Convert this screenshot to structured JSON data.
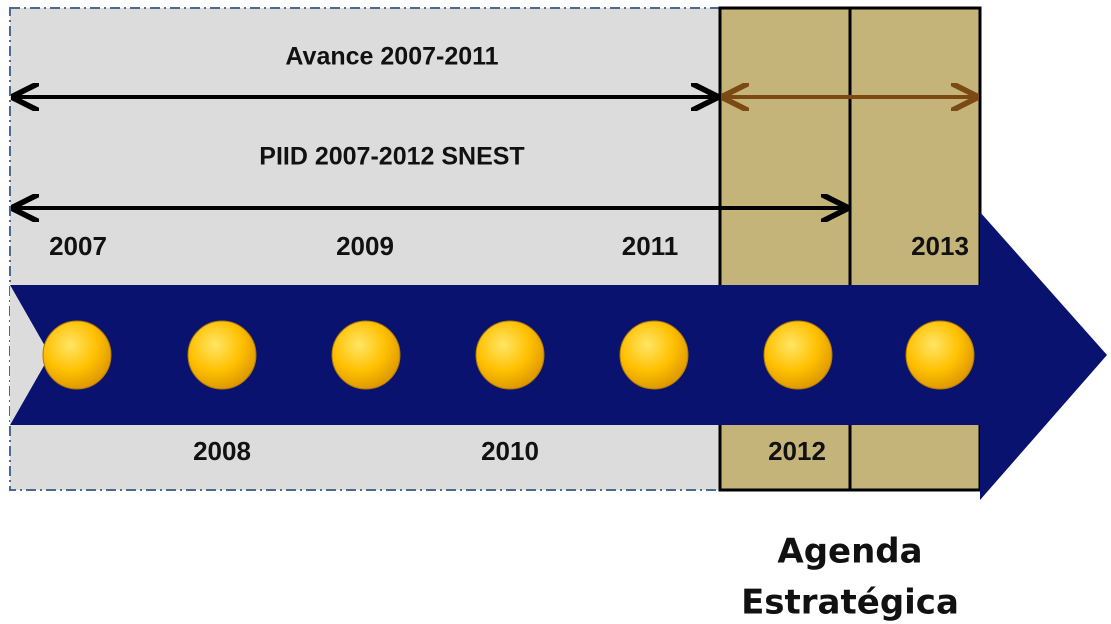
{
  "spans": [
    {
      "label": "Avance 2007-2011"
    },
    {
      "label": "PIID 2007-2012 SNEST"
    }
  ],
  "years": [
    "2007",
    "2008",
    "2009",
    "2010",
    "2011",
    "2012",
    "2013"
  ],
  "agenda": [
    "Agenda",
    "Estratégica"
  ]
}
